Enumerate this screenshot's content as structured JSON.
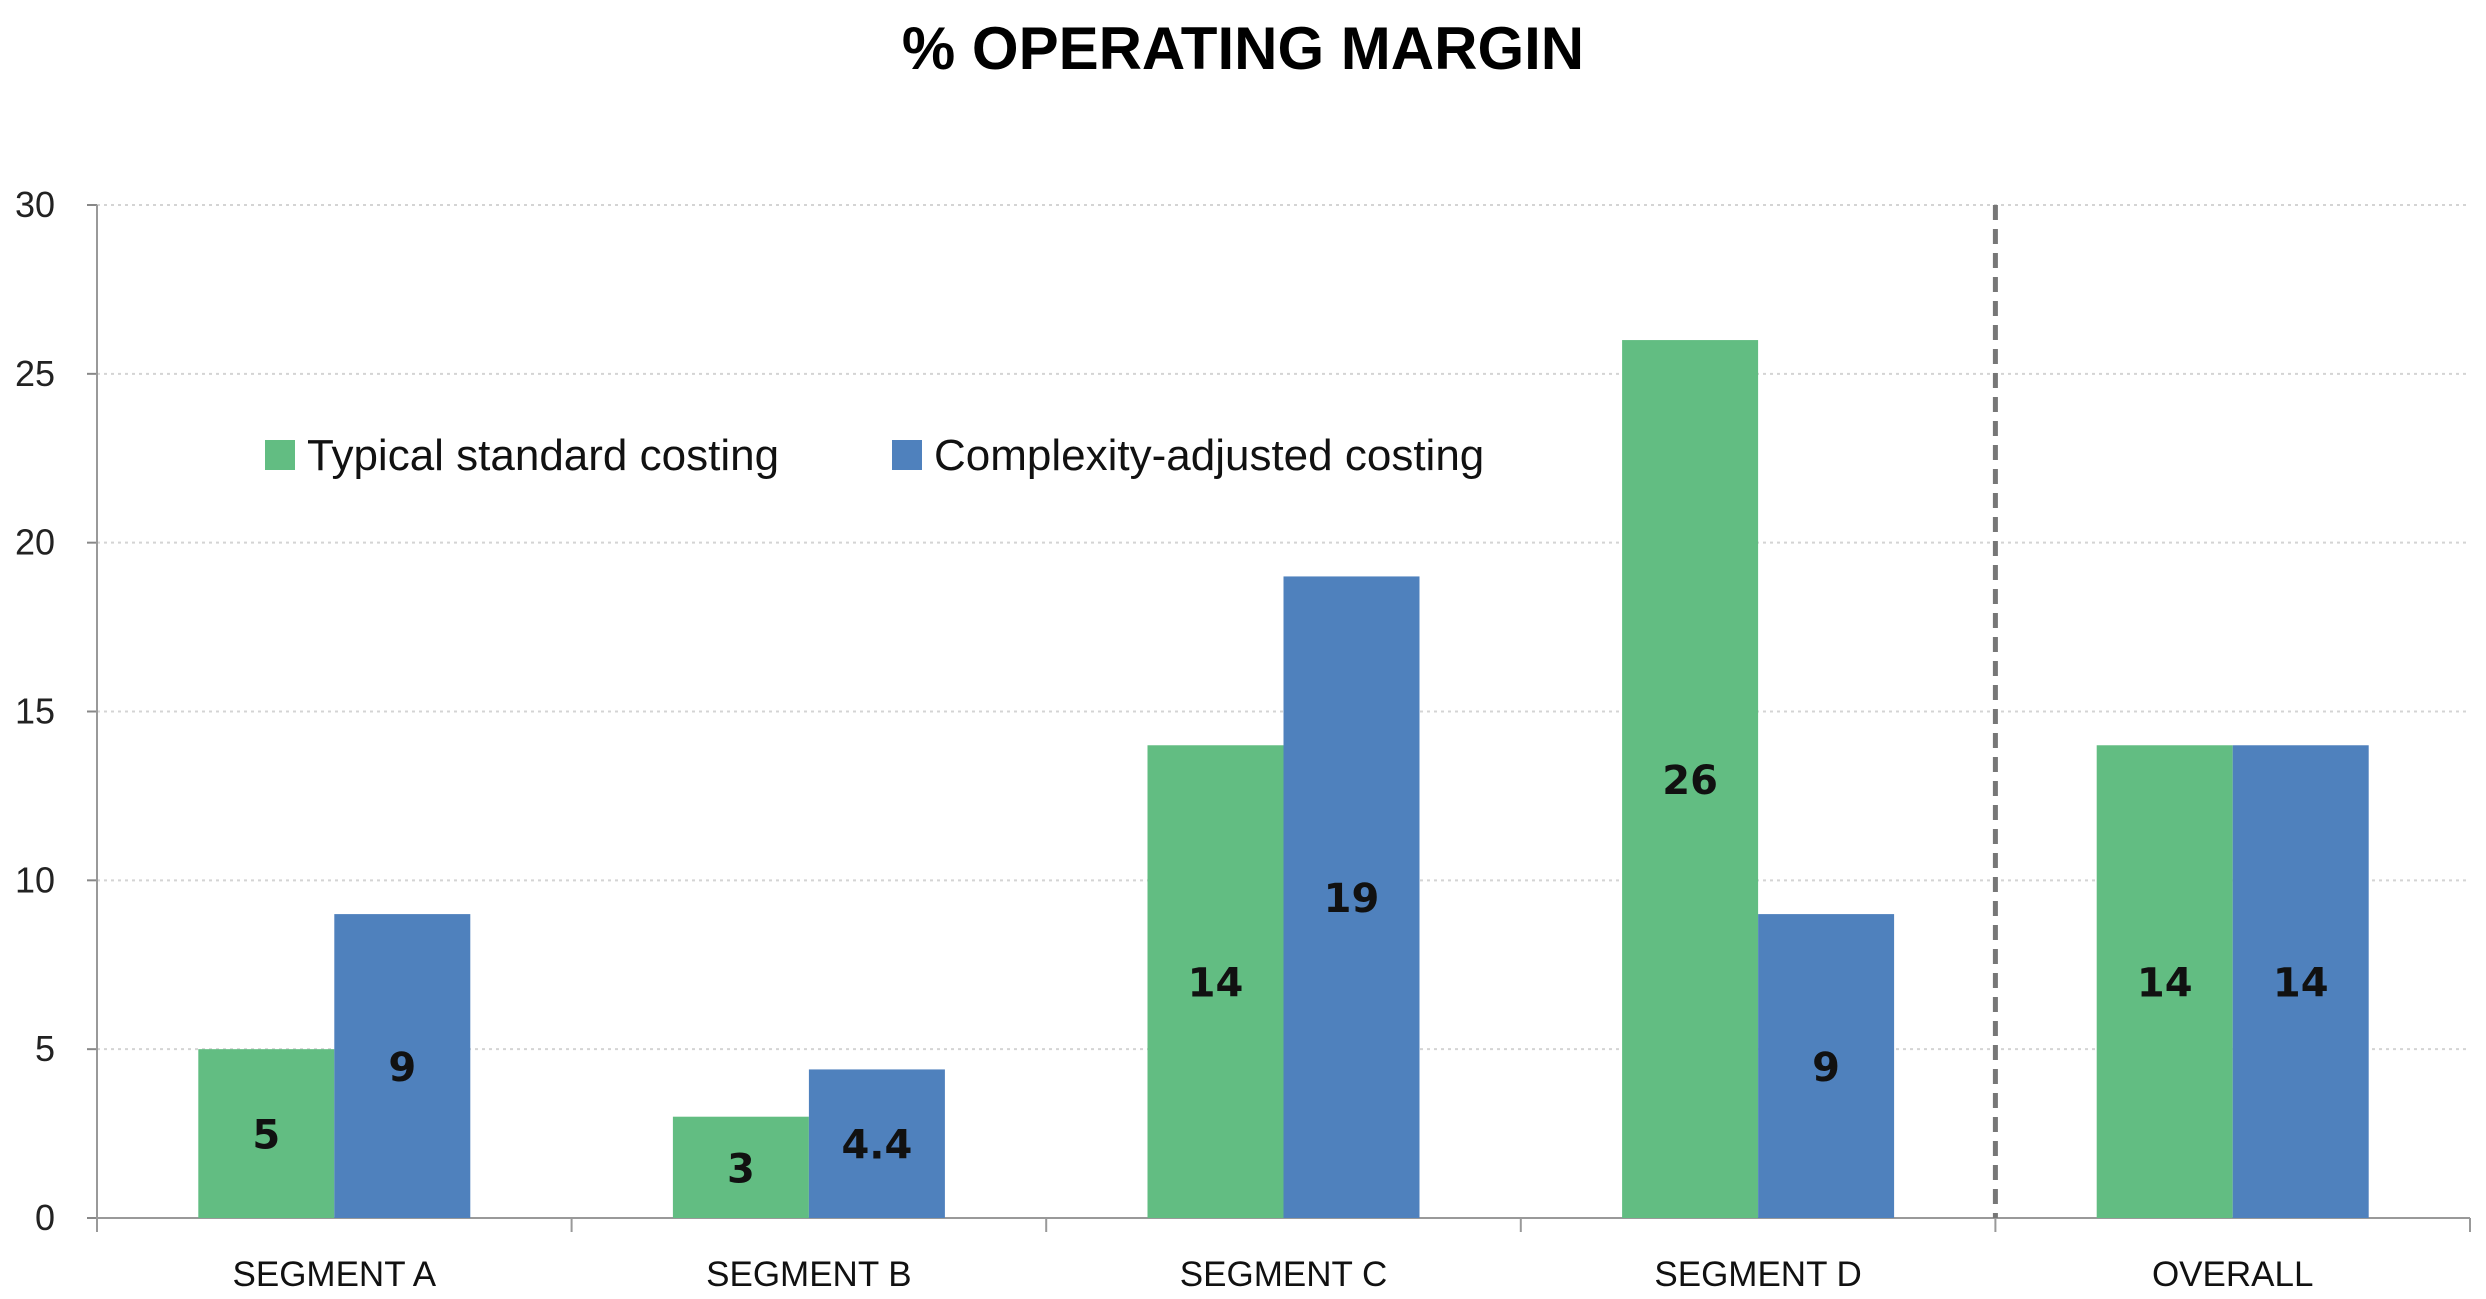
{
  "chart_data": {
    "type": "bar",
    "title": "% OPERATING MARGIN",
    "categories": [
      "SEGMENT A",
      "SEGMENT B",
      "SEGMENT C",
      "SEGMENT D",
      "OVERALL"
    ],
    "series": [
      {
        "name": "Typical standard costing",
        "color": "#62bd82",
        "values": [
          5,
          3,
          14,
          26,
          14
        ],
        "labels": [
          "5",
          "3",
          "14",
          "26",
          "14"
        ]
      },
      {
        "name": "Complexity-adjusted costing",
        "color": "#4f81bd",
        "values": [
          9,
          4.4,
          19,
          9,
          14
        ],
        "labels": [
          "9",
          "4.4",
          "19",
          "9",
          "14"
        ]
      }
    ],
    "ylim": [
      0,
      30
    ],
    "yticks": [
      0,
      5,
      10,
      15,
      20,
      25,
      30
    ],
    "grid": true,
    "legend_position": "top-left",
    "separator_before": "OVERALL",
    "xlabel": "",
    "ylabel": ""
  }
}
